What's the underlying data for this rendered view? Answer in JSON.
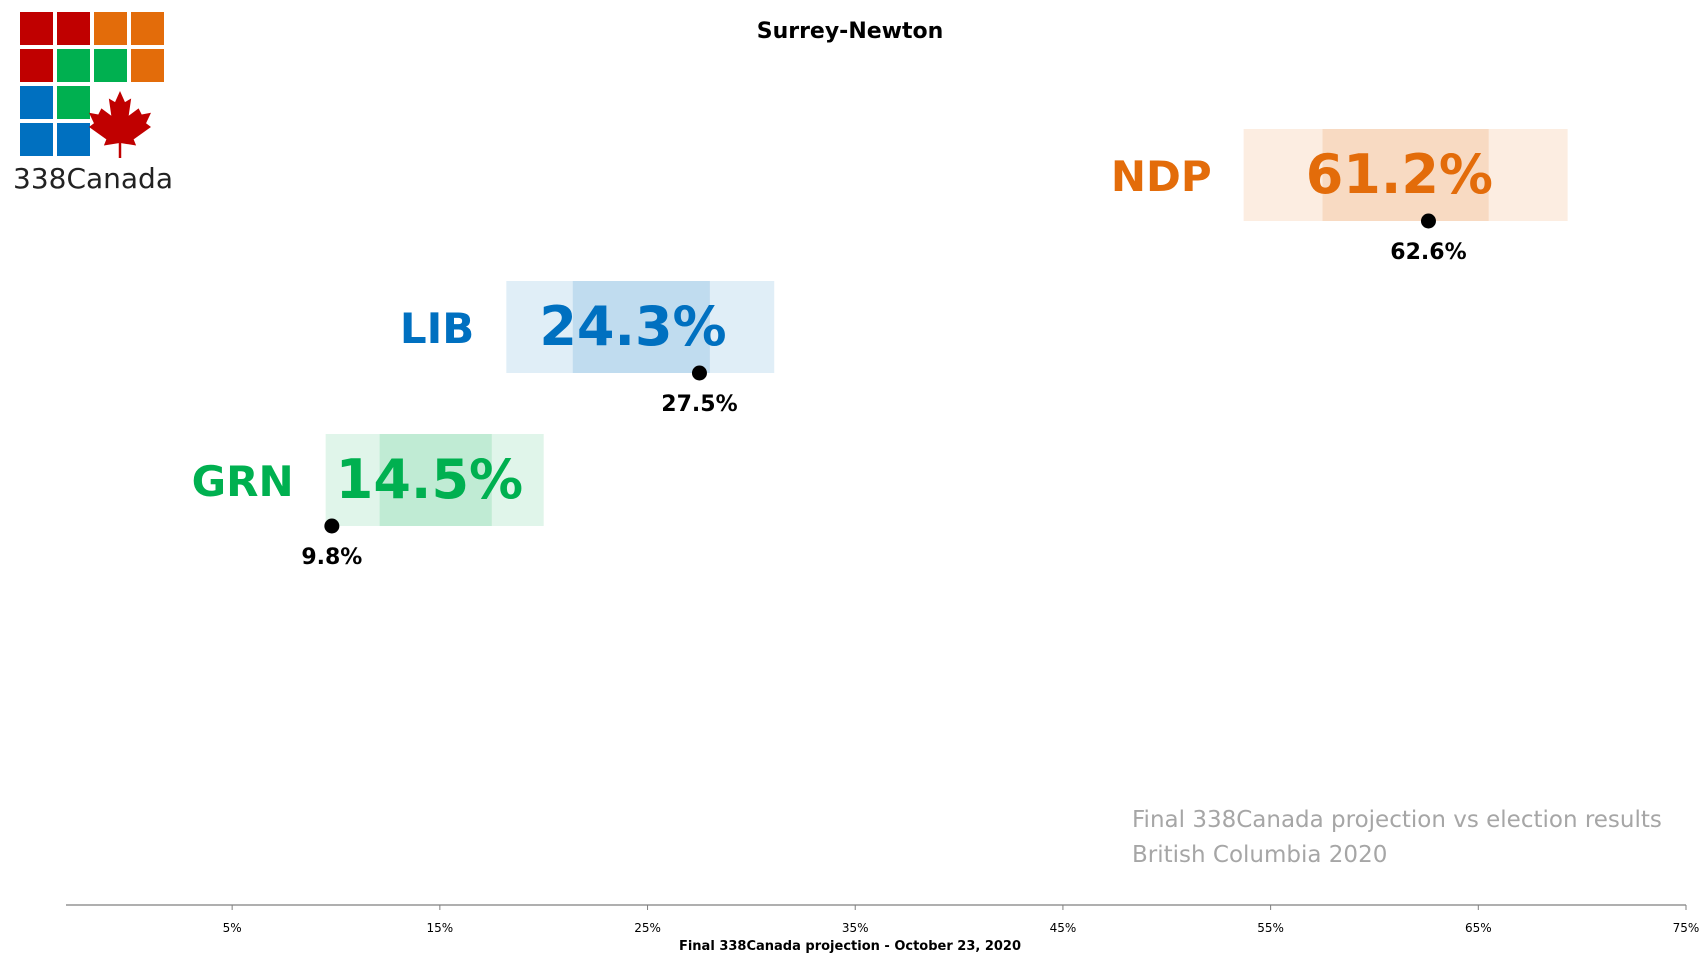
{
  "logo": {
    "brand_text": "338Canada",
    "grid_colors": [
      [
        "#c00000",
        "#c00000",
        "#e36c0a",
        "#e36c0a"
      ],
      [
        "#c00000",
        "#00b050",
        "#00b050",
        "#e36c0a"
      ],
      [
        "#0070c0",
        "#00b050",
        null,
        null
      ],
      [
        "#0070c0",
        "#0070c0",
        null,
        null
      ]
    ],
    "leaf_color": "#c00000",
    "icon": "maple-leaf-icon"
  },
  "chart_data": {
    "type": "bar",
    "title": "Surrey-Newton",
    "xlabel": "Final 338Canada projection - October 23, 2020",
    "ylabel": "",
    "xlim": [
      -3,
      75
    ],
    "x_ticks": [
      5,
      15,
      25,
      35,
      45,
      55,
      65,
      75
    ],
    "x_tick_labels": [
      "5%",
      "15%",
      "25%",
      "35%",
      "45%",
      "55%",
      "65%",
      "75%"
    ],
    "grid": false,
    "annotation": {
      "line1": "Final 338Canada projection vs election results",
      "line2": "British Columbia 2020"
    },
    "parties": [
      {
        "name": "NDP",
        "color": "#e36c0a",
        "projection": 61.2,
        "projection_label": "61.2%",
        "range_outer": [
          53.7,
          69.3
        ],
        "range_inner": [
          57.5,
          65.5
        ],
        "result": 62.6,
        "result_label": "62.6%"
      },
      {
        "name": "LIB",
        "color": "#0070c0",
        "projection": 24.3,
        "projection_label": "24.3%",
        "range_outer": [
          18.2,
          31.1
        ],
        "range_inner": [
          21.4,
          28.0
        ],
        "result": 27.5,
        "result_label": "27.5%"
      },
      {
        "name": "GRN",
        "color": "#00b050",
        "projection": 14.5,
        "projection_label": "14.5%",
        "range_outer": [
          9.5,
          20.0
        ],
        "range_inner": [
          12.1,
          17.5
        ],
        "result": 9.8,
        "result_label": "9.8%"
      }
    ]
  }
}
